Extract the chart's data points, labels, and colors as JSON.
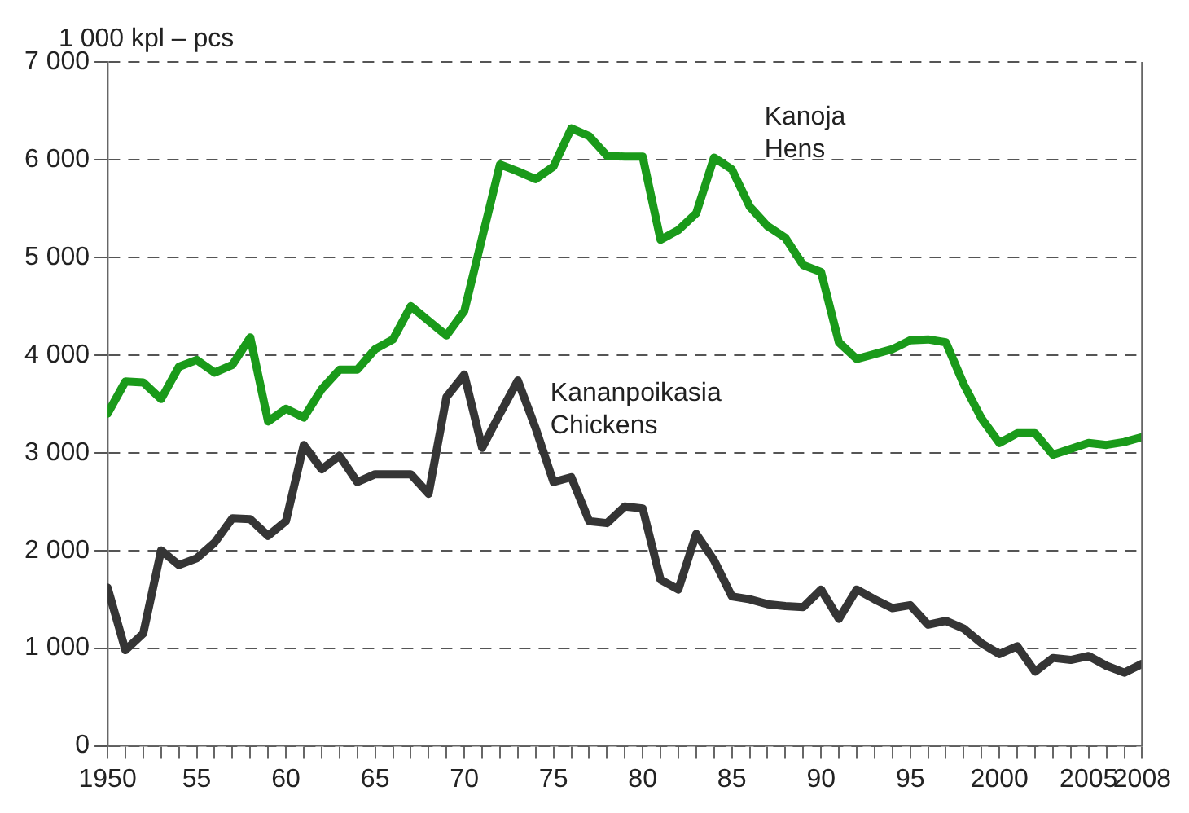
{
  "chart_data": {
    "type": "line",
    "ylabel": "1 000 kpl – pcs",
    "x": [
      1950,
      1951,
      1952,
      1953,
      1954,
      1955,
      1956,
      1957,
      1958,
      1959,
      1960,
      1961,
      1962,
      1963,
      1964,
      1965,
      1966,
      1967,
      1968,
      1969,
      1970,
      1971,
      1972,
      1973,
      1974,
      1975,
      1976,
      1977,
      1978,
      1979,
      1980,
      1981,
      1982,
      1983,
      1984,
      1985,
      1986,
      1987,
      1988,
      1989,
      1990,
      1991,
      1992,
      1993,
      1994,
      1995,
      1996,
      1997,
      1998,
      1999,
      2000,
      2001,
      2002,
      2003,
      2004,
      2005,
      2006,
      2007,
      2008
    ],
    "series": [
      {
        "name": "Kanoja\nHens",
        "color": "#1a9a1a",
        "values": [
          3400,
          3730,
          3720,
          3550,
          3880,
          3950,
          3820,
          3900,
          4180,
          3320,
          3450,
          3360,
          3650,
          3850,
          3850,
          4060,
          4160,
          4500,
          4350,
          4200,
          4450,
          5200,
          5950,
          5880,
          5800,
          5930,
          6320,
          6240,
          6040,
          6030,
          6030,
          5180,
          5280,
          5450,
          6020,
          5900,
          5520,
          5320,
          5200,
          4920,
          4850,
          4130,
          3960,
          4010,
          4060,
          4150,
          4160,
          4130,
          3700,
          3350,
          3100,
          3200,
          3200,
          2980,
          3040,
          3100,
          3080,
          3110,
          3160
        ]
      },
      {
        "name": "Kananpoikasia\nChickens",
        "color": "#353535",
        "values": [
          1620,
          980,
          1150,
          2000,
          1850,
          1920,
          2080,
          2330,
          2320,
          2150,
          2300,
          3080,
          2830,
          2970,
          2700,
          2780,
          2780,
          2780,
          2580,
          3570,
          3800,
          3050,
          3400,
          3740,
          3250,
          2700,
          2750,
          2300,
          2280,
          2450,
          2430,
          1700,
          1600,
          2170,
          1900,
          1530,
          1500,
          1450,
          1430,
          1420,
          1600,
          1300,
          1600,
          1500,
          1410,
          1440,
          1240,
          1280,
          1200,
          1050,
          940,
          1020,
          760,
          900,
          880,
          920,
          820,
          750,
          840
        ]
      }
    ],
    "xlim": [
      1950,
      2008
    ],
    "xticks": [
      1950,
      {
        "value": 1951,
        "label": null
      },
      {
        "value": 1952,
        "label": null
      },
      {
        "value": 1953,
        "label": null
      },
      {
        "value": 1954,
        "label": null
      },
      {
        "value": 1955,
        "label": "55"
      },
      {
        "value": 1956,
        "label": null
      },
      {
        "value": 1957,
        "label": null
      },
      {
        "value": 1958,
        "label": null
      },
      {
        "value": 1959,
        "label": null
      },
      {
        "value": 1960,
        "label": "60"
      },
      {
        "value": 1961,
        "label": null
      },
      {
        "value": 1962,
        "label": null
      },
      {
        "value": 1963,
        "label": null
      },
      {
        "value": 1964,
        "label": null
      },
      {
        "value": 1965,
        "label": "65"
      },
      {
        "value": 1966,
        "label": null
      },
      {
        "value": 1967,
        "label": null
      },
      {
        "value": 1968,
        "label": null
      },
      {
        "value": 1969,
        "label": null
      },
      {
        "value": 1970,
        "label": "70"
      },
      {
        "value": 1971,
        "label": null
      },
      {
        "value": 1972,
        "label": null
      },
      {
        "value": 1973,
        "label": null
      },
      {
        "value": 1974,
        "label": null
      },
      {
        "value": 1975,
        "label": "75"
      },
      {
        "value": 1976,
        "label": null
      },
      {
        "value": 1977,
        "label": null
      },
      {
        "value": 1978,
        "label": null
      },
      {
        "value": 1979,
        "label": null
      },
      {
        "value": 1980,
        "label": "80"
      },
      {
        "value": 1981,
        "label": null
      },
      {
        "value": 1982,
        "label": null
      },
      {
        "value": 1983,
        "label": null
      },
      {
        "value": 1984,
        "label": null
      },
      {
        "value": 1985,
        "label": "85"
      },
      {
        "value": 1986,
        "label": null
      },
      {
        "value": 1987,
        "label": null
      },
      {
        "value": 1988,
        "label": null
      },
      {
        "value": 1989,
        "label": null
      },
      {
        "value": 1990,
        "label": "90"
      },
      {
        "value": 1991,
        "label": null
      },
      {
        "value": 1992,
        "label": null
      },
      {
        "value": 1993,
        "label": null
      },
      {
        "value": 1994,
        "label": null
      },
      {
        "value": 1995,
        "label": "95"
      },
      {
        "value": 1996,
        "label": null
      },
      {
        "value": 1997,
        "label": null
      },
      {
        "value": 1998,
        "label": null
      },
      {
        "value": 1999,
        "label": null
      },
      2000,
      {
        "value": 2001,
        "label": null
      },
      {
        "value": 2002,
        "label": null
      },
      {
        "value": 2003,
        "label": null
      },
      {
        "value": 2004,
        "label": null
      },
      2005,
      {
        "value": 2006,
        "label": null
      },
      {
        "value": 2007,
        "label": null
      },
      2008
    ],
    "ylim": [
      0,
      7000
    ],
    "yticks": [
      {
        "value": 0,
        "label": "0"
      },
      {
        "value": 1000,
        "label": "1 000"
      },
      {
        "value": 2000,
        "label": "2 000"
      },
      {
        "value": 3000,
        "label": "3 000"
      },
      {
        "value": 4000,
        "label": "4 000"
      },
      {
        "value": 5000,
        "label": "5 000"
      },
      {
        "value": 6000,
        "label": "6 000"
      },
      {
        "value": 7000,
        "label": "7 000"
      }
    ],
    "grid": "y",
    "legend": false,
    "marker": "none",
    "line_style": "solid"
  }
}
